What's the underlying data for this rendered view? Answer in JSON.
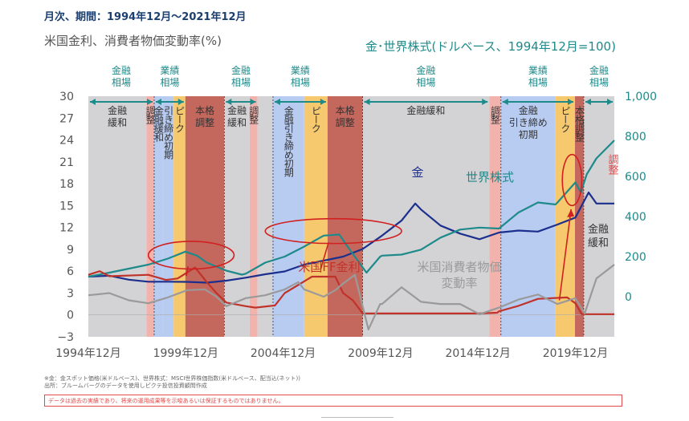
{
  "header": {
    "period": "月次、期間：1994年12月～2021年12月",
    "left_axis_title": "米国金利、消費者物価変動率(%)",
    "right_axis_title": "金･世界株式(ドルベース、1994年12月=100)"
  },
  "footer": {
    "note1": "※金：金スポット価格(米ドルベース)、世界株式：MSCI世界株価指数(米ドルベース、配当込(ネット))",
    "note2": "出所：ブルームバーグのデータを使用しピクテ投信投資顧問作成",
    "disclaimer": "データは過去の実績であり、将来の運用成果等を示唆あるいは保証するものではありません。"
  },
  "chart_data": {
    "type": "line",
    "x_range": [
      1994.92,
      2021.92
    ],
    "left_axis": {
      "ylim": [
        -3,
        30
      ],
      "ticks": [
        -3,
        0,
        3,
        6,
        9,
        12,
        15,
        18,
        21,
        24,
        27,
        30
      ],
      "tick_labels": [
        "−3",
        "0",
        "3",
        "6",
        "9",
        "12",
        "15",
        "18",
        "21",
        "24",
        "27",
        "30"
      ]
    },
    "right_axis": {
      "ylim": [
        -200,
        1000
      ],
      "ticks": [
        0,
        200,
        400,
        600,
        800,
        1000
      ],
      "tick_labels": [
        "0",
        "200",
        "400",
        "600",
        "800",
        "1,000"
      ]
    },
    "x_ticks": [
      {
        "x": 1994.92,
        "label": "1994年12月"
      },
      {
        "x": 1999.92,
        "label": "1999年12月"
      },
      {
        "x": 2004.92,
        "label": "2004年12月"
      },
      {
        "x": 2009.92,
        "label": "2009年12月"
      },
      {
        "x": 2014.92,
        "label": "2014年12月"
      },
      {
        "x": 2019.92,
        "label": "2019年12月"
      }
    ],
    "bands": [
      {
        "x0": 1994.92,
        "x1": 1997.9,
        "color": "#d3d3d6",
        "label": "金融\n緩和",
        "dir": "h"
      },
      {
        "x0": 1997.9,
        "x1": 1998.3,
        "color": "#f2b3ad",
        "label": "調整",
        "dir": "v"
      },
      {
        "x0": 1998.3,
        "x1": 1998.75,
        "color": "#b8ccf2",
        "label": "金融緩和",
        "dir": "v"
      },
      {
        "x0": 1998.75,
        "x1": 1999.3,
        "color": "#b8ccf2",
        "label": "引き締め初期",
        "dir": "v"
      },
      {
        "x0": 1999.3,
        "x1": 1999.9,
        "color": "#f6c96e",
        "label": "ピーク",
        "dir": "v"
      },
      {
        "x0": 1999.9,
        "x1": 2001.9,
        "color": "#c4685e",
        "label": "本格\n調整",
        "dir": "h"
      },
      {
        "x0": 2001.9,
        "x1": 2003.2,
        "color": "#d3d3d6",
        "label": "金融\n緩和",
        "dir": "h"
      },
      {
        "x0": 2003.2,
        "x1": 2003.6,
        "color": "#f2b3ad",
        "label": "調整",
        "dir": "v"
      },
      {
        "x0": 2003.6,
        "x1": 2004.4,
        "color": "#d3d3d6",
        "label": "",
        "dir": "h"
      },
      {
        "x0": 2004.4,
        "x1": 2006.0,
        "color": "#b8ccf2",
        "label": "金融引き締め初期",
        "dir": "v"
      },
      {
        "x0": 2006.0,
        "x1": 2007.2,
        "color": "#f6c96e",
        "label": "ピーク",
        "dir": "v"
      },
      {
        "x0": 2007.2,
        "x1": 2009.0,
        "color": "#c4685e",
        "label": "本格\n調整",
        "dir": "h"
      },
      {
        "x0": 2009.0,
        "x1": 2015.5,
        "color": "#d3d3d6",
        "label": "金融緩和",
        "dir": "h"
      },
      {
        "x0": 2015.5,
        "x1": 2016.1,
        "color": "#f2b3ad",
        "label": "調整",
        "dir": "v"
      },
      {
        "x0": 2016.1,
        "x1": 2018.9,
        "color": "#b8ccf2",
        "label": "金融\n引き締め\n初期",
        "dir": "h"
      },
      {
        "x0": 2018.9,
        "x1": 2019.9,
        "color": "#f6c96e",
        "label": "ピーク",
        "dir": "v"
      },
      {
        "x0": 2019.9,
        "x1": 2020.35,
        "color": "#c4685e",
        "label": "本格調整",
        "dir": "v"
      },
      {
        "x0": 2020.35,
        "x1": 2021.92,
        "color": "#d3d3d6",
        "label": "",
        "dir": "h"
      }
    ],
    "phases": [
      {
        "x0": 1994.92,
        "x1": 1998.3,
        "label": "金融\n相場"
      },
      {
        "x0": 1998.3,
        "x1": 1999.9,
        "label": "業績\n相場"
      },
      {
        "x0": 2001.9,
        "x1": 2003.6,
        "label": "金融\n相場"
      },
      {
        "x0": 2004.4,
        "x1": 2007.2,
        "label": "業績\n相場"
      },
      {
        "x0": 2009.0,
        "x1": 2015.5,
        "label": "金融\n相場"
      },
      {
        "x0": 2016.1,
        "x1": 2019.9,
        "label": "業績\n相場"
      },
      {
        "x0": 2020.35,
        "x1": 2021.92,
        "label": "金融\n相場"
      }
    ],
    "series": [
      {
        "name": "金",
        "axis": "right",
        "color": "#1c2f8c",
        "width": 2.2,
        "x": [
          1994.92,
          1996,
          1997,
          1998,
          1999,
          2000,
          2001,
          2002,
          2003,
          2004,
          2005,
          2006,
          2007,
          2008,
          2009,
          2010,
          2011,
          2011.7,
          2012,
          2013,
          2014,
          2015,
          2016,
          2017,
          2018,
          2019,
          2019.92,
          2020.6,
          2021,
          2021.92
        ],
        "y": [
          100,
          105,
          85,
          75,
          75,
          74,
          70,
          80,
          95,
          112,
          126,
          160,
          180,
          200,
          238,
          305,
          380,
          465,
          435,
          355,
          315,
          287,
          320,
          330,
          325,
          360,
          395,
          520,
          465,
          465
        ]
      },
      {
        "name": "世界株式",
        "axis": "right",
        "color": "#1e8a8a",
        "width": 2.2,
        "x": [
          1994.92,
          1996,
          1997,
          1998,
          1999,
          1999.9,
          2000.5,
          2001,
          2002,
          2002.8,
          2003,
          2004,
          2005,
          2006,
          2007,
          2007.8,
          2008.3,
          2009.2,
          2009.9,
          2010,
          2011,
          2012,
          2013,
          2014,
          2015,
          2016,
          2017,
          2018,
          2018.9,
          2019,
          2019.92,
          2020.2,
          2020.5,
          2021,
          2021.92
        ],
        "y": [
          100,
          120,
          140,
          160,
          190,
          225,
          205,
          170,
          130,
          110,
          115,
          170,
          200,
          250,
          305,
          310,
          240,
          120,
          200,
          205,
          210,
          235,
          295,
          335,
          345,
          340,
          420,
          470,
          460,
          470,
          570,
          520,
          610,
          690,
          780
        ]
      },
      {
        "name": "米国FF金利",
        "axis": "left",
        "color": "#c0332b",
        "width": 2.2,
        "x": [
          1994.92,
          1995.5,
          1996,
          1998,
          1998.9,
          1999.5,
          2000.4,
          2001,
          2001.5,
          2002,
          2003,
          2003.5,
          2004.5,
          2005,
          2006.4,
          2007.6,
          2008,
          2008.5,
          2009,
          2015,
          2015.9,
          2016,
          2017,
          2018,
          2019.5,
          2019.92,
          2020.25,
          2021.92
        ],
        "y": [
          5.5,
          6,
          5.3,
          5.5,
          4.8,
          5,
          6.5,
          4.5,
          3,
          1.7,
          1.2,
          1,
          1.3,
          3,
          5.25,
          5.25,
          3,
          2,
          0.2,
          0.2,
          0.3,
          0.5,
          1.25,
          2.2,
          2.4,
          1.6,
          0.1,
          0.1
        ]
      },
      {
        "name": "米国消費者物価変動率",
        "axis": "left",
        "color": "#9a9a9a",
        "width": 2.2,
        "x": [
          1994.92,
          1996,
          1997,
          1998,
          1999,
          2000,
          2000.9,
          2001.5,
          2002,
          2003,
          2004,
          2005,
          2005.7,
          2006,
          2007,
          2007.6,
          2008,
          2008.6,
          2009.3,
          2009.9,
          2010,
          2011,
          2012,
          2013,
          2014,
          2015,
          2016,
          2017,
          2018,
          2019,
          2019.92,
          2020.4,
          2021,
          2021.92
        ],
        "y": [
          2.7,
          3,
          2,
          1.6,
          2.4,
          3.4,
          3.5,
          2.5,
          1.2,
          2.3,
          2.7,
          3.5,
          4.5,
          3.5,
          2.5,
          3.4,
          4.3,
          5.5,
          -2,
          1.5,
          1.5,
          3.8,
          1.8,
          1.5,
          1.5,
          0.1,
          1,
          2.1,
          2.8,
          1.5,
          2.3,
          0.2,
          5,
          6.9
        ]
      }
    ],
    "line_labels": [
      {
        "text": "金",
        "series": "金",
        "color": "#1c2f8c"
      },
      {
        "text": "世界株式",
        "series": "世界株式",
        "color": "#1e8a8a"
      },
      {
        "text": "米国FF金利",
        "series": "米国FF金利",
        "color": "#c0332b"
      },
      {
        "text": "米国消費者物価\n変動率",
        "series": "米国消費者物価変動率",
        "color": "#9a9a9a"
      }
    ],
    "side_labels": [
      {
        "text": "調整",
        "color": "#e34a4a"
      },
      {
        "text": "金融\n緩和",
        "color": "#333333"
      }
    ],
    "highlights": [
      {
        "cx": 2000.2,
        "cy": 8.2,
        "rx": 2.2,
        "ry": 1.9
      },
      {
        "cx": 2007.5,
        "cy": 11.5,
        "rx": 3.5,
        "ry": 1.7
      },
      {
        "cx": 2019.75,
        "cy": 18.5,
        "rx": 0.5,
        "ry": 3.5
      }
    ]
  }
}
